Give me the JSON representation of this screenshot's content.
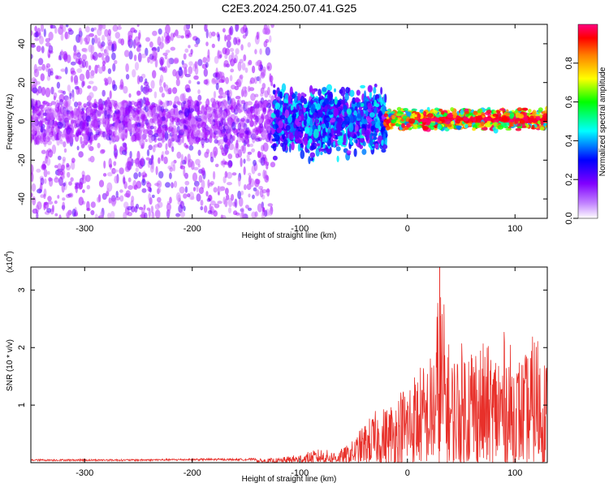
{
  "title": "C2E3.2024.250.07.41.G25",
  "colors": {
    "signal_line": "#e8302a",
    "colormap": [
      "#ffffff",
      "#a000ff",
      "#0000ff",
      "#00ffff",
      "#00ff00",
      "#ffff00",
      "#ff8000",
      "#ff0000",
      "#ff0080"
    ]
  },
  "chart_data": [
    {
      "type": "heatmap",
      "title": "C2E3.2024.250.07.41.G25",
      "xlabel": "Height of straight line (km)",
      "ylabel": "Frequency (Hz)",
      "xlim": [
        -350,
        130
      ],
      "ylim": [
        -50,
        50
      ],
      "x_ticks": [
        "-300",
        "-200",
        "-100",
        "0",
        "100"
      ],
      "y_ticks": [
        "-40",
        "-20",
        "0",
        "20",
        "40"
      ],
      "colorbar": {
        "label": "Normalized spectral amplitude",
        "range": [
          0.0,
          1.0
        ],
        "ticks": [
          "0.0",
          "0.2",
          "0.4",
          "0.6",
          "0.8"
        ]
      },
      "description_regions": [
        {
          "x_range": [
            -350,
            -125
          ],
          "freq_range": [
            -50,
            50
          ],
          "amplitude": [
            0.05,
            0.2
          ]
        },
        {
          "x_range": [
            -125,
            -20
          ],
          "freq_range": [
            -15,
            15
          ],
          "amplitude": [
            0.1,
            0.4
          ]
        },
        {
          "x_range": [
            -20,
            130
          ],
          "freq_range": [
            -3,
            5
          ],
          "amplitude": [
            0.3,
            1.0
          ]
        }
      ]
    },
    {
      "type": "line",
      "xlabel": "Height of straight line (km)",
      "ylabel": "SNR (10 * v/v)",
      "y_multiplier_label": "(x10",
      "y_multiplier_exp": "4",
      "xlim": [
        -350,
        130
      ],
      "ylim": [
        0,
        3.4
      ],
      "x_ticks": [
        "-300",
        "-200",
        "-100",
        "0",
        "100"
      ],
      "y_ticks": [
        "1",
        "2",
        "3"
      ],
      "series": [
        {
          "x": [
            -350,
            -300,
            -250,
            -200,
            -150,
            -120,
            -100,
            -90,
            -80,
            -70,
            -60,
            -50,
            -40,
            -30,
            -20,
            -10,
            0,
            10,
            20,
            25,
            30,
            40,
            50,
            60,
            70,
            80,
            90,
            100,
            110,
            120,
            130
          ],
          "values": [
            0.05,
            0.05,
            0.05,
            0.06,
            0.06,
            0.08,
            0.15,
            0.2,
            0.25,
            0.2,
            0.25,
            0.4,
            0.7,
            0.9,
            1.0,
            1.2,
            1.5,
            1.7,
            1.8,
            2.2,
            3.4,
            1.9,
            2.1,
            2.3,
            2.1,
            2.0,
            2.3,
            1.9,
            1.9,
            2.4,
            1.8
          ]
        }
      ]
    }
  ]
}
